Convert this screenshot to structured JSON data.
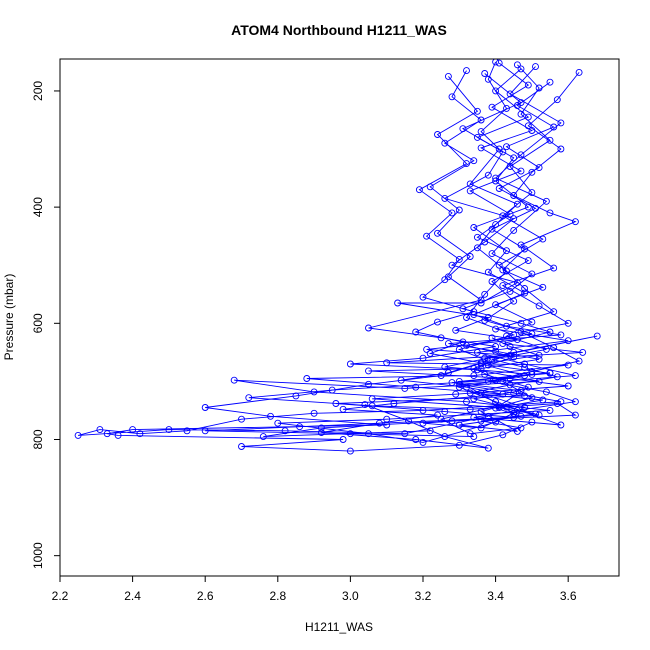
{
  "chart_data": {
    "type": "scatter",
    "title": "ATOM4 Northbound H1211_WAS",
    "xlabel": "H1211_WAS",
    "ylabel": "Pressure (mbar)",
    "xlim": [
      2.2,
      3.74
    ],
    "ylim": [
      1035,
      145
    ],
    "y_reversed": true,
    "x_ticks": [
      "2.2",
      "2.4",
      "2.6",
      "2.8",
      "3.0",
      "3.2",
      "3.4",
      "3.6"
    ],
    "y_ticks": [
      "200",
      "400",
      "600",
      "800",
      "1000"
    ],
    "color": "#0000ff",
    "marker": "open-circle",
    "lines_connect_points": true,
    "grid": false,
    "series": [
      {
        "points": [
          [
            3.4,
            150
          ],
          [
            3.38,
            180
          ],
          [
            3.43,
            230
          ],
          [
            3.36,
            270
          ],
          [
            3.41,
            300
          ],
          [
            3.33,
            360
          ],
          [
            3.46,
            395
          ],
          [
            3.4,
            430
          ],
          [
            3.35,
            470
          ],
          [
            3.43,
            510
          ],
          [
            3.37,
            550
          ],
          [
            3.32,
            590
          ],
          [
            3.45,
            620
          ],
          [
            3.3,
            645
          ],
          [
            3.38,
            665
          ],
          [
            3.25,
            690
          ],
          [
            3.05,
            705
          ],
          [
            2.85,
            725
          ],
          [
            2.6,
            745
          ],
          [
            2.78,
            760
          ],
          [
            3.1,
            775
          ],
          [
            2.4,
            783
          ],
          [
            2.33,
            790
          ],
          [
            2.36,
            793
          ],
          [
            2.98,
            800
          ],
          [
            2.7,
            812
          ],
          [
            3.0,
            820
          ],
          [
            3.3,
            810
          ],
          [
            3.42,
            792
          ],
          [
            3.5,
            770
          ]
        ]
      },
      {
        "points": [
          [
            3.46,
            155
          ],
          [
            3.52,
            195
          ],
          [
            3.47,
            240
          ],
          [
            3.55,
            285
          ],
          [
            3.44,
            330
          ],
          [
            3.5,
            375
          ],
          [
            3.42,
            415
          ],
          [
            3.53,
            455
          ],
          [
            3.41,
            500
          ],
          [
            3.48,
            540
          ],
          [
            3.56,
            580
          ],
          [
            3.4,
            610
          ],
          [
            3.6,
            630
          ],
          [
            3.35,
            650
          ],
          [
            3.48,
            670
          ],
          [
            3.62,
            690
          ],
          [
            3.3,
            705
          ],
          [
            3.45,
            720
          ],
          [
            3.58,
            735
          ],
          [
            3.2,
            750
          ],
          [
            2.9,
            755
          ],
          [
            2.7,
            765
          ],
          [
            2.55,
            785
          ],
          [
            2.42,
            790
          ],
          [
            2.31,
            783
          ],
          [
            2.25,
            793
          ],
          [
            2.5,
            783
          ],
          [
            2.82,
            785
          ],
          [
            3.15,
            790
          ],
          [
            3.38,
            760
          ]
        ]
      },
      {
        "points": [
          [
            3.32,
            165
          ],
          [
            3.28,
            210
          ],
          [
            3.36,
            250
          ],
          [
            3.26,
            290
          ],
          [
            3.34,
            320
          ],
          [
            3.22,
            365
          ],
          [
            3.3,
            405
          ],
          [
            3.24,
            445
          ],
          [
            3.33,
            485
          ],
          [
            3.27,
            520
          ],
          [
            3.36,
            560
          ],
          [
            3.05,
            608
          ],
          [
            3.25,
            625
          ],
          [
            3.4,
            640
          ],
          [
            3.2,
            660
          ],
          [
            3.0,
            670
          ],
          [
            3.35,
            680
          ],
          [
            3.52,
            700
          ],
          [
            3.15,
            712
          ],
          [
            2.68,
            698
          ],
          [
            2.9,
            718
          ],
          [
            3.32,
            735
          ],
          [
            3.55,
            750
          ],
          [
            3.1,
            765
          ],
          [
            2.8,
            772
          ],
          [
            3.05,
            790
          ],
          [
            3.2,
            805
          ],
          [
            3.4,
            770
          ],
          [
            3.48,
            745
          ],
          [
            3.36,
            720
          ]
        ]
      },
      {
        "points": [
          [
            3.51,
            158
          ],
          [
            3.44,
            205
          ],
          [
            3.58,
            255
          ],
          [
            3.47,
            310
          ],
          [
            3.4,
            350
          ],
          [
            3.54,
            390
          ],
          [
            3.45,
            440
          ],
          [
            3.39,
            480
          ],
          [
            3.5,
            515
          ],
          [
            3.44,
            545
          ],
          [
            3.31,
            575
          ],
          [
            3.47,
            600
          ],
          [
            3.55,
            615
          ],
          [
            3.42,
            635
          ],
          [
            3.64,
            650
          ],
          [
            3.37,
            660
          ],
          [
            3.68,
            622
          ],
          [
            3.26,
            675
          ],
          [
            3.5,
            688
          ],
          [
            3.4,
            698
          ],
          [
            2.95,
            715
          ],
          [
            2.72,
            728
          ],
          [
            3.06,
            742
          ],
          [
            3.33,
            748
          ],
          [
            3.57,
            738
          ],
          [
            3.62,
            758
          ],
          [
            3.28,
            768
          ],
          [
            2.92,
            780
          ],
          [
            2.76,
            795
          ],
          [
            3.22,
            785
          ]
        ]
      },
      {
        "points": [
          [
            3.37,
            170
          ],
          [
            3.47,
            220
          ],
          [
            3.31,
            265
          ],
          [
            3.42,
            305
          ],
          [
            3.38,
            345
          ],
          [
            3.26,
            385
          ],
          [
            3.45,
            420
          ],
          [
            3.37,
            460
          ],
          [
            3.28,
            500
          ],
          [
            3.46,
            530
          ],
          [
            3.36,
            565
          ],
          [
            3.13,
            565
          ],
          [
            3.38,
            590
          ],
          [
            3.29,
            612
          ],
          [
            3.46,
            628
          ],
          [
            3.21,
            645
          ],
          [
            3.44,
            655
          ],
          [
            3.1,
            668
          ],
          [
            3.6,
            672
          ],
          [
            3.34,
            690
          ],
          [
            2.88,
            695
          ],
          [
            3.18,
            710
          ],
          [
            3.48,
            725
          ],
          [
            2.96,
            738
          ],
          [
            3.26,
            752
          ],
          [
            3.45,
            762
          ],
          [
            2.86,
            778
          ],
          [
            2.6,
            785
          ],
          [
            3.0,
            790
          ],
          [
            3.34,
            795
          ]
        ]
      },
      {
        "points": [
          [
            3.47,
            162
          ],
          [
            3.4,
            200
          ],
          [
            3.49,
            245
          ],
          [
            3.35,
            280
          ],
          [
            3.45,
            315
          ],
          [
            3.4,
            355
          ],
          [
            3.49,
            400
          ],
          [
            3.34,
            435
          ],
          [
            3.43,
            475
          ],
          [
            3.38,
            512
          ],
          [
            3.48,
            548
          ],
          [
            3.34,
            585
          ],
          [
            3.43,
            605
          ],
          [
            3.58,
            620
          ],
          [
            3.27,
            635
          ],
          [
            3.4,
            648
          ],
          [
            3.52,
            662
          ],
          [
            3.36,
            678
          ],
          [
            3.05,
            682
          ],
          [
            3.44,
            695
          ],
          [
            3.6,
            708
          ],
          [
            3.29,
            722
          ],
          [
            3.06,
            730
          ],
          [
            3.41,
            745
          ],
          [
            3.52,
            758
          ],
          [
            3.2,
            772
          ],
          [
            3.36,
            780
          ],
          [
            3.45,
            755
          ],
          [
            3.3,
            700
          ],
          [
            3.55,
            685
          ]
        ]
      },
      {
        "points": [
          [
            3.63,
            168
          ],
          [
            3.57,
            215
          ],
          [
            3.49,
            260
          ],
          [
            3.58,
            300
          ],
          [
            3.5,
            340
          ],
          [
            3.45,
            380
          ],
          [
            3.55,
            410
          ],
          [
            3.62,
            425
          ],
          [
            3.47,
            465
          ],
          [
            3.56,
            505
          ],
          [
            3.42,
            535
          ],
          [
            3.52,
            570
          ],
          [
            3.6,
            600
          ],
          [
            3.47,
            615
          ],
          [
            3.56,
            642
          ],
          [
            3.63,
            665
          ],
          [
            3.5,
            683
          ],
          [
            3.38,
            700
          ],
          [
            3.54,
            718
          ],
          [
            3.62,
            735
          ],
          [
            3.46,
            750
          ],
          [
            3.34,
            762
          ],
          [
            3.58,
            775
          ],
          [
            3.4,
            735
          ],
          [
            3.3,
            710
          ],
          [
            3.48,
            690
          ],
          [
            3.36,
            670
          ],
          [
            3.52,
            655
          ],
          [
            3.44,
            640
          ],
          [
            3.39,
            625
          ]
        ]
      },
      {
        "points": [
          [
            3.27,
            175
          ],
          [
            3.35,
            235
          ],
          [
            3.24,
            275
          ],
          [
            3.32,
            325
          ],
          [
            3.19,
            370
          ],
          [
            3.28,
            410
          ],
          [
            3.21,
            450
          ],
          [
            3.3,
            490
          ],
          [
            3.26,
            525
          ],
          [
            3.2,
            555
          ],
          [
            3.34,
            580
          ],
          [
            3.24,
            598
          ],
          [
            3.18,
            615
          ],
          [
            3.31,
            632
          ],
          [
            3.22,
            652
          ],
          [
            3.36,
            668
          ],
          [
            3.27,
            685
          ],
          [
            3.14,
            698
          ],
          [
            3.32,
            710
          ],
          [
            3.42,
            722
          ],
          [
            3.12,
            738
          ],
          [
            2.98,
            748
          ],
          [
            3.24,
            758
          ],
          [
            3.08,
            772
          ],
          [
            2.92,
            788
          ],
          [
            3.18,
            800
          ],
          [
            3.38,
            815
          ],
          [
            3.26,
            795
          ],
          [
            3.16,
            768
          ],
          [
            3.04,
            740
          ]
        ]
      },
      {
        "points": [
          [
            3.41,
            152
          ],
          [
            3.49,
            190
          ],
          [
            3.39,
            228
          ],
          [
            3.5,
            268
          ],
          [
            3.36,
            298
          ],
          [
            3.47,
            338
          ],
          [
            3.33,
            372
          ],
          [
            3.44,
            412
          ],
          [
            3.35,
            452
          ],
          [
            3.49,
            492
          ],
          [
            3.39,
            528
          ],
          [
            3.45,
            562
          ],
          [
            3.37,
            595
          ],
          [
            3.5,
            618
          ],
          [
            3.32,
            638
          ],
          [
            3.45,
            658
          ],
          [
            3.38,
            672
          ],
          [
            3.55,
            686
          ],
          [
            3.28,
            702
          ],
          [
            3.47,
            716
          ],
          [
            3.34,
            730
          ],
          [
            3.43,
            744
          ],
          [
            3.51,
            756
          ],
          [
            3.36,
            768
          ],
          [
            3.47,
            780
          ],
          [
            3.33,
            790
          ],
          [
            3.25,
            765
          ],
          [
            3.41,
            742
          ],
          [
            3.49,
            710
          ],
          [
            3.37,
            688
          ]
        ]
      },
      {
        "points": [
          [
            3.55,
            185
          ],
          [
            3.46,
            225
          ],
          [
            3.56,
            262
          ],
          [
            3.43,
            296
          ],
          [
            3.52,
            332
          ],
          [
            3.41,
            368
          ],
          [
            3.51,
            402
          ],
          [
            3.39,
            438
          ],
          [
            3.48,
            472
          ],
          [
            3.42,
            508
          ],
          [
            3.53,
            538
          ],
          [
            3.4,
            568
          ],
          [
            3.5,
            598
          ],
          [
            3.43,
            622
          ],
          [
            3.54,
            645
          ],
          [
            3.39,
            662
          ],
          [
            3.48,
            676
          ],
          [
            3.57,
            692
          ],
          [
            3.44,
            706
          ],
          [
            3.33,
            720
          ],
          [
            3.53,
            732
          ],
          [
            3.4,
            746
          ],
          [
            3.47,
            760
          ],
          [
            3.3,
            775
          ],
          [
            3.46,
            786
          ],
          [
            3.36,
            752
          ],
          [
            3.5,
            728
          ],
          [
            3.42,
            700
          ],
          [
            3.34,
            678
          ],
          [
            3.45,
            650
          ]
        ]
      }
    ]
  }
}
